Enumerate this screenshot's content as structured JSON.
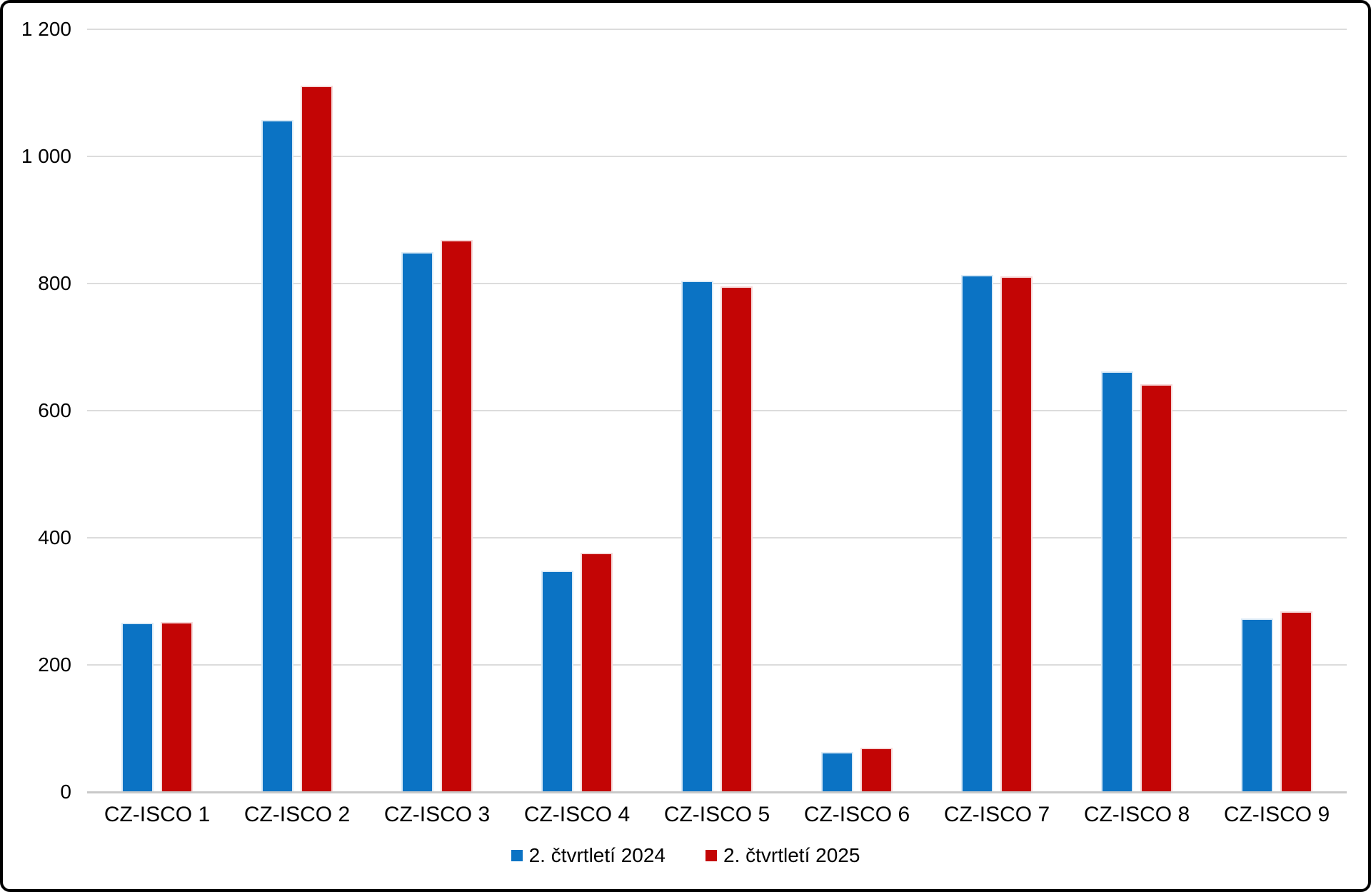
{
  "window": {
    "background_color": "#ffffff",
    "border_color": "#000000"
  },
  "chart_data": {
    "type": "bar",
    "title": "",
    "categories": [
      "CZ-ISCO 1",
      "CZ-ISCO 2",
      "CZ-ISCO 3",
      "CZ-ISCO 4",
      "CZ-ISCO 5",
      "CZ-ISCO 6",
      "CZ-ISCO 7",
      "CZ-ISCO 8",
      "CZ-ISCO 9"
    ],
    "series": [
      {
        "name": "2. čtvrtletí 2024",
        "color": "#0b73c4",
        "values": [
          266,
          1057,
          849,
          348,
          804,
          63,
          813,
          662,
          273
        ]
      },
      {
        "name": "2. čtvrtletí 2025",
        "color": "#c30505",
        "values": [
          267,
          1111,
          869,
          376,
          796,
          70,
          811,
          642,
          284
        ]
      }
    ],
    "y_axis": {
      "min": 0,
      "max": 1200,
      "step": 200,
      "tick_labels": [
        "0",
        "200",
        "400",
        "600",
        "800",
        "1 000",
        "1 200"
      ]
    },
    "x_axis_label": "",
    "y_axis_label": "",
    "grid": true,
    "legend_position": "bottom",
    "gridline_color": "#dcdcdc",
    "axis_line_color": "#c9c9c9"
  }
}
